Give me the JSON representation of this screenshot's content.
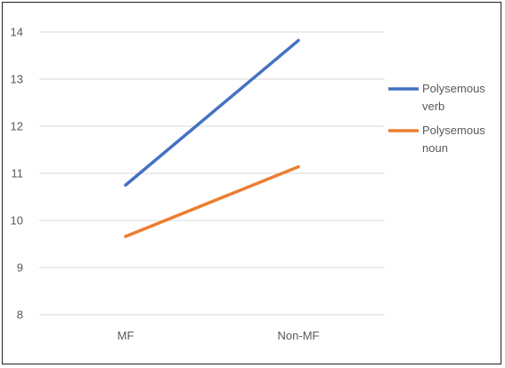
{
  "chart_data": {
    "type": "line",
    "categories": [
      "MF",
      "Non-MF"
    ],
    "series": [
      {
        "name": "Polysemous verb",
        "values": [
          10.75,
          13.82
        ],
        "color": "#4472C4",
        "legend_lines": [
          "Polysemous",
          "verb"
        ]
      },
      {
        "name": "Polysemous noun",
        "values": [
          9.66,
          11.14
        ],
        "color": "#ED7D31",
        "legend_lines": [
          "Polysemous",
          "noun"
        ]
      }
    ],
    "ylim": [
      8,
      14
    ],
    "yticks": [
      "8",
      "9",
      "10",
      "11",
      "12",
      "13",
      "14"
    ],
    "grid": true,
    "gridline_color": "#d9d9d9",
    "legend_position": "right"
  }
}
